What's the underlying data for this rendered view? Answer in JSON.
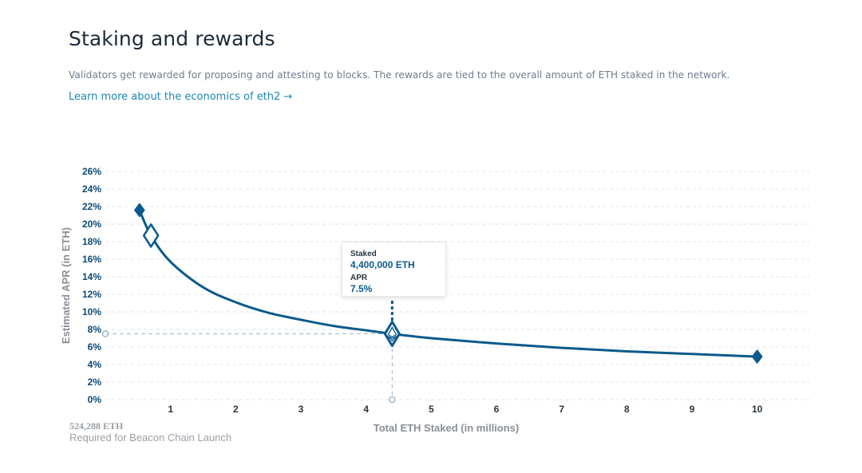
{
  "header": {
    "title": "Staking and rewards",
    "description": "Validators get rewarded for proposing and attesting to blocks. The rewards are tied to the overall amount of ETH staked in the network.",
    "learn_more": "Learn more about the economics of eth2 →"
  },
  "tooltip": {
    "staked_label": "Staked",
    "staked_value": "4,400,000 ETH",
    "apr_label": "APR",
    "apr_value": "7.5%"
  },
  "launch": {
    "value": "524,288 ETH",
    "note": "Required for Beacon Chain Launch"
  },
  "colors": {
    "curve": "#0b5a8c",
    "grid": "#dfe3e8",
    "guide": "#9ab7cc"
  },
  "chart_data": {
    "type": "line",
    "xlabel": "Total ETH Staked  (in millions)",
    "ylabel": "Estimated APR (in ETH)",
    "xlim": [
      0,
      10.8
    ],
    "ylim": [
      0,
      26
    ],
    "x_ticks": [
      1,
      2,
      3,
      4,
      5,
      6,
      7,
      8,
      9,
      10
    ],
    "y_ticks": [
      0,
      2,
      4,
      6,
      8,
      10,
      12,
      14,
      16,
      18,
      20,
      22,
      24,
      26
    ],
    "y_tick_suffix": "%",
    "grid": true,
    "series": [
      {
        "x": [
          0.524288,
          0.7,
          1,
          1.5,
          2,
          2.5,
          3,
          3.5,
          4,
          4.4,
          5,
          6,
          7,
          8,
          9,
          10
        ],
        "y": [
          21.6,
          18.7,
          15.7,
          12.8,
          11.1,
          9.9,
          9.1,
          8.4,
          7.9,
          7.5,
          7.0,
          6.4,
          5.9,
          5.5,
          5.2,
          4.9
        ]
      }
    ],
    "markers": [
      {
        "x": 0.524288,
        "y": 21.6,
        "style": "filled"
      },
      {
        "x": 0.7,
        "y": 18.7,
        "style": "hollow"
      },
      {
        "x": 4.4,
        "y": 7.5,
        "style": "eth"
      },
      {
        "x": 10,
        "y": 4.9,
        "style": "filled"
      }
    ],
    "highlight": {
      "x": 4.4,
      "y": 7.5
    }
  }
}
